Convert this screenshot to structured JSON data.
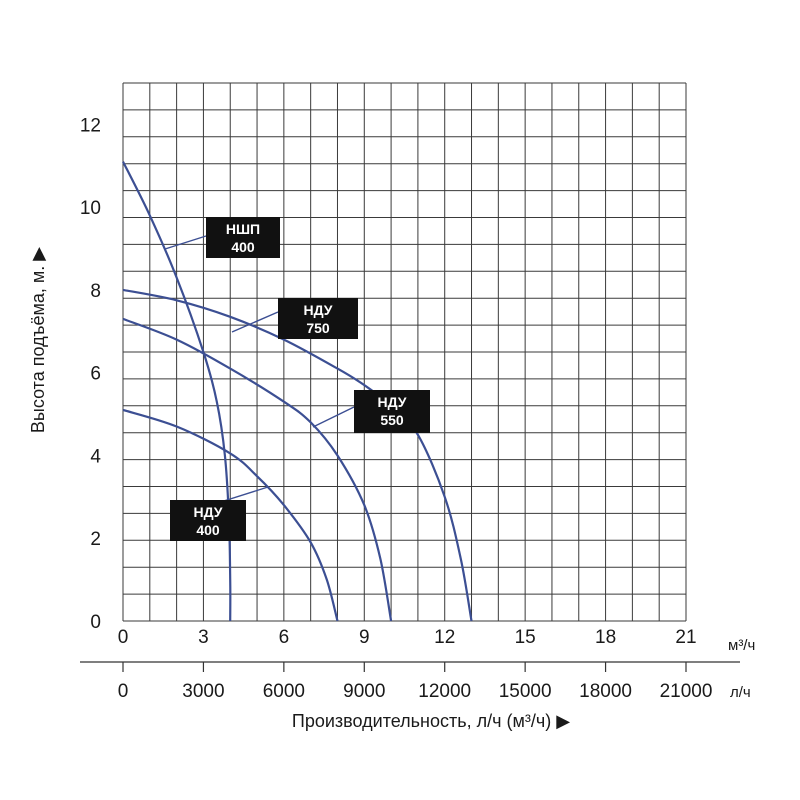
{
  "chart_data": {
    "type": "line",
    "ylabel": "Высота подъёма, м. ▶",
    "xlabel": "Производительность, л/ч (м³/ч) ▶",
    "x_unit_primary": "м³/ч",
    "x_unit_secondary": "л/ч",
    "ylim": [
      0,
      13
    ],
    "xlim": [
      0,
      21
    ],
    "y_ticks": [
      "0",
      "2",
      "4",
      "6",
      "8",
      "10",
      "12"
    ],
    "x_ticks_m3h": [
      "0",
      "3",
      "6",
      "9",
      "12",
      "15",
      "18",
      "21"
    ],
    "x_ticks_lh": [
      "0",
      "3000",
      "6000",
      "9000",
      "12000",
      "15000",
      "18000",
      "21000"
    ],
    "grid": true,
    "line_color": "#3c4f93",
    "label_box_color": "#111111",
    "series": [
      {
        "name": "НШП 400",
        "label_lines": [
          "НШП",
          "400"
        ],
        "points": [
          [
            0,
            11.1
          ],
          [
            1,
            9.8
          ],
          [
            2,
            8.3
          ],
          [
            3,
            6.5
          ],
          [
            3.5,
            5.3
          ],
          [
            3.8,
            4.0
          ],
          [
            3.95,
            2.5
          ],
          [
            4.0,
            1.0
          ],
          [
            4.0,
            0
          ]
        ]
      },
      {
        "name": "НДУ 750",
        "label_lines": [
          "НДУ",
          "750"
        ],
        "points": [
          [
            0,
            8.0
          ],
          [
            2,
            7.75
          ],
          [
            4,
            7.35
          ],
          [
            6,
            6.8
          ],
          [
            8,
            6.1
          ],
          [
            9,
            5.7
          ],
          [
            10,
            5.2
          ],
          [
            11,
            4.5
          ],
          [
            12,
            3.0
          ],
          [
            12.6,
            1.5
          ],
          [
            13,
            0
          ]
        ]
      },
      {
        "name": "НДУ 550",
        "label_lines": [
          "НДУ",
          "550"
        ],
        "points": [
          [
            0,
            7.3
          ],
          [
            2,
            6.8
          ],
          [
            4,
            6.1
          ],
          [
            6,
            5.3
          ],
          [
            7,
            4.8
          ],
          [
            8,
            4.0
          ],
          [
            9,
            2.8
          ],
          [
            9.6,
            1.5
          ],
          [
            10,
            0
          ]
        ]
      },
      {
        "name": "НДУ 400",
        "label_lines": [
          "НДУ",
          "400"
        ],
        "points": [
          [
            0,
            5.1
          ],
          [
            2,
            4.7
          ],
          [
            4,
            4.05
          ],
          [
            5,
            3.5
          ],
          [
            6,
            2.8
          ],
          [
            7,
            1.9
          ],
          [
            7.6,
            1.0
          ],
          [
            8,
            0
          ]
        ]
      }
    ]
  }
}
